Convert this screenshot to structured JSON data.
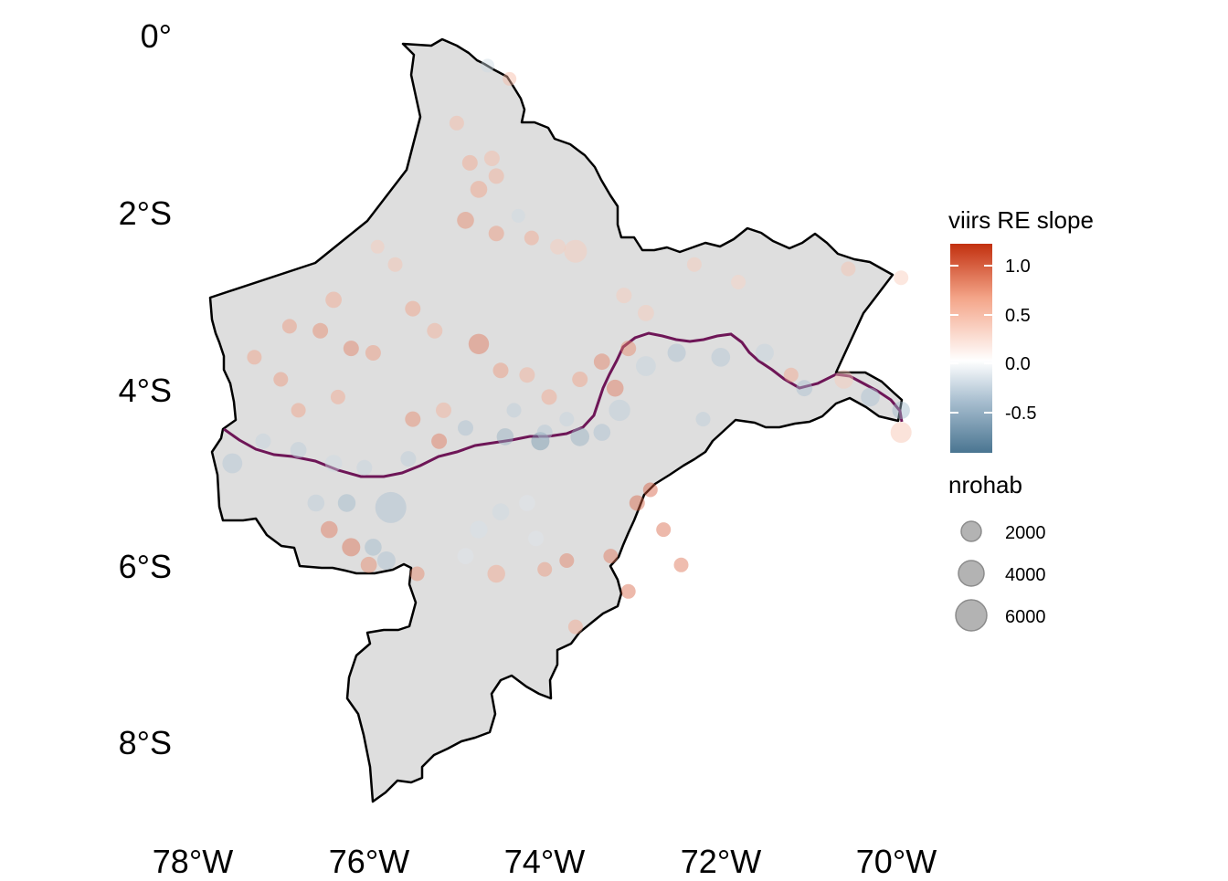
{
  "map": {
    "region_fill": "#dedede",
    "border_color": "#000000",
    "river_color": "#6e1657",
    "point_opacity": 0.45,
    "axis": {
      "lat_labels": [
        "0°",
        "2°S",
        "4°S",
        "6°S",
        "8°S"
      ],
      "lat_values": [
        0,
        -2,
        -4,
        -6,
        -8
      ],
      "lon_labels": [
        "78°W",
        "76°W",
        "74°W",
        "72°W",
        "70°W"
      ],
      "lon_values": [
        -78,
        -76,
        -74,
        -72,
        -70
      ]
    },
    "extent": {
      "lon": [
        -78.3,
        -69.7
      ],
      "lat": [
        -8.75,
        0.05
      ]
    }
  },
  "legend": {
    "color": {
      "title": "viirs RE slope",
      "ticks": [
        "1.0",
        "0.5",
        "0.0",
        "-0.5"
      ],
      "tick_values": [
        1.0,
        0.5,
        0.0,
        -0.5
      ],
      "range": [
        -0.95,
        1.22
      ],
      "colors": {
        "high": "#c2300f",
        "mid_high": "#f4a589",
        "mid": "#ffffff",
        "mid_low": "#a9bfd0",
        "low": "#4a7591"
      }
    },
    "size": {
      "title": "nrohab",
      "labels": [
        "2000",
        "4000",
        "6000"
      ],
      "values": [
        2000,
        4000,
        6000
      ],
      "fill": "#b3b3b3",
      "stroke": "#8c8c8c"
    }
  },
  "chart_data": {
    "type": "scatter",
    "title": "",
    "xlabel": "",
    "ylabel": "",
    "x_unit": "longitude",
    "y_unit": "latitude",
    "points": [
      {
        "x": -75.0,
        "y": -1.0,
        "c": 0.4,
        "n": 400
      },
      {
        "x": -74.85,
        "y": -1.45,
        "c": 0.5,
        "n": 500
      },
      {
        "x": -74.6,
        "y": -1.4,
        "c": 0.4,
        "n": 500
      },
      {
        "x": -74.75,
        "y": -1.75,
        "c": 0.55,
        "n": 700
      },
      {
        "x": -74.55,
        "y": -1.6,
        "c": 0.45,
        "n": 500
      },
      {
        "x": -74.9,
        "y": -2.1,
        "c": 0.7,
        "n": 700
      },
      {
        "x": -74.55,
        "y": -2.25,
        "c": 0.6,
        "n": 500
      },
      {
        "x": -74.3,
        "y": -2.05,
        "c": -0.3,
        "n": 300
      },
      {
        "x": -74.15,
        "y": -2.3,
        "c": 0.5,
        "n": 400
      },
      {
        "x": -73.85,
        "y": -2.4,
        "c": 0.3,
        "n": 500
      },
      {
        "x": -73.65,
        "y": -2.45,
        "c": 0.3,
        "n": 1800
      },
      {
        "x": -73.1,
        "y": -2.95,
        "c": 0.3,
        "n": 500
      },
      {
        "x": -72.85,
        "y": -3.15,
        "c": 0.3,
        "n": 600
      },
      {
        "x": -75.9,
        "y": -2.4,
        "c": 0.3,
        "n": 300
      },
      {
        "x": -75.7,
        "y": -2.6,
        "c": 0.35,
        "n": 400
      },
      {
        "x": -76.4,
        "y": -3.0,
        "c": 0.5,
        "n": 600
      },
      {
        "x": -76.55,
        "y": -3.35,
        "c": 0.7,
        "n": 500
      },
      {
        "x": -76.9,
        "y": -3.3,
        "c": 0.6,
        "n": 400
      },
      {
        "x": -76.2,
        "y": -3.55,
        "c": 0.75,
        "n": 500
      },
      {
        "x": -75.95,
        "y": -3.6,
        "c": 0.6,
        "n": 500
      },
      {
        "x": -75.5,
        "y": -3.1,
        "c": 0.55,
        "n": 500
      },
      {
        "x": -75.25,
        "y": -3.35,
        "c": 0.45,
        "n": 500
      },
      {
        "x": -75.5,
        "y": -4.35,
        "c": 0.7,
        "n": 500
      },
      {
        "x": -75.2,
        "y": -4.6,
        "c": 0.8,
        "n": 500
      },
      {
        "x": -74.75,
        "y": -3.5,
        "c": 0.8,
        "n": 1300
      },
      {
        "x": -74.5,
        "y": -3.8,
        "c": 0.6,
        "n": 500
      },
      {
        "x": -74.2,
        "y": -3.85,
        "c": 0.45,
        "n": 500
      },
      {
        "x": -73.95,
        "y": -4.1,
        "c": 0.5,
        "n": 500
      },
      {
        "x": -73.6,
        "y": -3.9,
        "c": 0.55,
        "n": 500
      },
      {
        "x": -73.35,
        "y": -3.7,
        "c": 0.75,
        "n": 600
      },
      {
        "x": -73.2,
        "y": -4.0,
        "c": 0.8,
        "n": 700
      },
      {
        "x": -73.05,
        "y": -3.55,
        "c": 0.7,
        "n": 500
      },
      {
        "x": -72.85,
        "y": -3.75,
        "c": -0.35,
        "n": 1200
      },
      {
        "x": -72.5,
        "y": -3.6,
        "c": -0.5,
        "n": 900
      },
      {
        "x": -72.0,
        "y": -3.65,
        "c": -0.45,
        "n": 1000
      },
      {
        "x": -71.5,
        "y": -3.6,
        "c": -0.35,
        "n": 900
      },
      {
        "x": -73.15,
        "y": -4.25,
        "c": -0.4,
        "n": 1500
      },
      {
        "x": -73.35,
        "y": -4.5,
        "c": -0.5,
        "n": 700
      },
      {
        "x": -73.6,
        "y": -4.55,
        "c": -0.6,
        "n": 1000
      },
      {
        "x": -74.05,
        "y": -4.6,
        "c": -0.75,
        "n": 900
      },
      {
        "x": -74.45,
        "y": -4.55,
        "c": -0.6,
        "n": 700
      },
      {
        "x": -74.9,
        "y": -4.45,
        "c": -0.5,
        "n": 500
      },
      {
        "x": -75.55,
        "y": -4.8,
        "c": -0.4,
        "n": 500
      },
      {
        "x": -76.05,
        "y": -4.9,
        "c": -0.35,
        "n": 500
      },
      {
        "x": -76.4,
        "y": -4.85,
        "c": -0.3,
        "n": 700
      },
      {
        "x": -76.8,
        "y": -4.7,
        "c": -0.4,
        "n": 600
      },
      {
        "x": -77.2,
        "y": -4.6,
        "c": -0.35,
        "n": 500
      },
      {
        "x": -77.55,
        "y": -4.85,
        "c": -0.45,
        "n": 1200
      },
      {
        "x": -75.75,
        "y": -5.35,
        "c": -0.5,
        "n": 4200
      },
      {
        "x": -76.25,
        "y": -5.3,
        "c": -0.55,
        "n": 800
      },
      {
        "x": -76.6,
        "y": -5.3,
        "c": -0.4,
        "n": 700
      },
      {
        "x": -76.45,
        "y": -5.6,
        "c": 0.8,
        "n": 700
      },
      {
        "x": -76.2,
        "y": -5.8,
        "c": 0.85,
        "n": 900
      },
      {
        "x": -76.0,
        "y": -6.0,
        "c": 0.7,
        "n": 600
      },
      {
        "x": -75.95,
        "y": -5.8,
        "c": -0.55,
        "n": 700
      },
      {
        "x": -75.8,
        "y": -5.95,
        "c": -0.5,
        "n": 900
      },
      {
        "x": -75.45,
        "y": -6.1,
        "c": 0.7,
        "n": 400
      },
      {
        "x": -74.75,
        "y": -5.6,
        "c": -0.25,
        "n": 800
      },
      {
        "x": -74.5,
        "y": -5.4,
        "c": -0.3,
        "n": 700
      },
      {
        "x": -74.2,
        "y": -5.3,
        "c": -0.2,
        "n": 600
      },
      {
        "x": -74.9,
        "y": -5.9,
        "c": -0.2,
        "n": 600
      },
      {
        "x": -74.1,
        "y": -5.7,
        "c": -0.2,
        "n": 500
      },
      {
        "x": -73.75,
        "y": -5.95,
        "c": 0.75,
        "n": 400
      },
      {
        "x": -73.25,
        "y": -5.9,
        "c": 0.8,
        "n": 400
      },
      {
        "x": -73.05,
        "y": -6.3,
        "c": 0.9,
        "n": 400
      },
      {
        "x": -74.0,
        "y": -6.05,
        "c": 0.6,
        "n": 400
      },
      {
        "x": -73.65,
        "y": -6.7,
        "c": 0.5,
        "n": 400
      },
      {
        "x": -72.95,
        "y": -5.3,
        "c": 0.9,
        "n": 500
      },
      {
        "x": -72.8,
        "y": -5.15,
        "c": 0.95,
        "n": 400
      },
      {
        "x": -72.65,
        "y": -5.6,
        "c": 0.9,
        "n": 400
      },
      {
        "x": -72.45,
        "y": -6.0,
        "c": 0.85,
        "n": 400
      },
      {
        "x": -74.55,
        "y": -6.1,
        "c": 0.5,
        "n": 800
      },
      {
        "x": -72.2,
        "y": -4.35,
        "c": -0.4,
        "n": 400
      },
      {
        "x": -71.05,
        "y": -4.0,
        "c": -0.5,
        "n": 600
      },
      {
        "x": -70.6,
        "y": -3.9,
        "c": 0.3,
        "n": 1000
      },
      {
        "x": -70.3,
        "y": -4.1,
        "c": -0.5,
        "n": 1000
      },
      {
        "x": -69.95,
        "y": -4.25,
        "c": -0.55,
        "n": 800
      },
      {
        "x": -69.95,
        "y": -4.5,
        "c": 0.35,
        "n": 1400
      },
      {
        "x": -71.2,
        "y": -3.85,
        "c": 0.5,
        "n": 400
      },
      {
        "x": -70.55,
        "y": -2.65,
        "c": 0.35,
        "n": 400
      },
      {
        "x": -69.95,
        "y": -2.75,
        "c": 0.3,
        "n": 400
      },
      {
        "x": -71.8,
        "y": -2.8,
        "c": 0.25,
        "n": 400
      },
      {
        "x": -72.3,
        "y": -2.6,
        "c": 0.3,
        "n": 400
      },
      {
        "x": -74.65,
        "y": -0.35,
        "c": -0.3,
        "n": 300
      },
      {
        "x": -74.4,
        "y": -0.5,
        "c": 0.4,
        "n": 300
      },
      {
        "x": -77.3,
        "y": -3.65,
        "c": 0.55,
        "n": 400
      },
      {
        "x": -77.0,
        "y": -3.9,
        "c": 0.6,
        "n": 400
      },
      {
        "x": -76.8,
        "y": -4.25,
        "c": 0.55,
        "n": 400
      },
      {
        "x": -76.35,
        "y": -4.1,
        "c": 0.5,
        "n": 400
      },
      {
        "x": -74.0,
        "y": -4.5,
        "c": -0.45,
        "n": 500
      },
      {
        "x": -73.75,
        "y": -4.35,
        "c": -0.35,
        "n": 400
      },
      {
        "x": -75.15,
        "y": -4.25,
        "c": 0.45,
        "n": 500
      },
      {
        "x": -74.35,
        "y": -4.25,
        "c": -0.4,
        "n": 400
      }
    ]
  }
}
